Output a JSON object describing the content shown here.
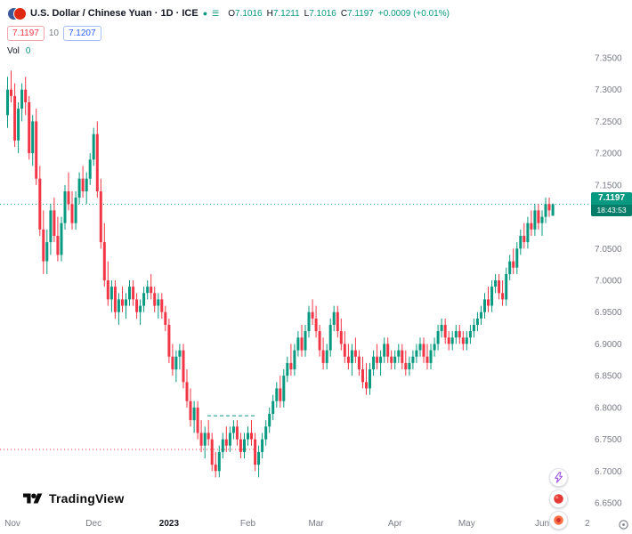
{
  "header": {
    "symbol_title": "U.S. Dollar / Chinese Yuan · 1D · ICE",
    "ohlc": {
      "open_label": "O",
      "open": "7.1016",
      "high_label": "H",
      "high": "7.1211",
      "low_label": "L",
      "low": "7.1016",
      "close_label": "C",
      "close": "7.1197",
      "change": "+0.0009 (+0.01%)"
    },
    "bid": "7.1197",
    "spread": "10",
    "ask": "7.1207",
    "volume_label": "Vol",
    "volume_value": "0"
  },
  "colors": {
    "up": "#089981",
    "down": "#F23645",
    "bid_badge": "#F23645",
    "ask_badge": "#2962FF",
    "axis_text": "#787B86",
    "title_text": "#131722"
  },
  "watermark": {
    "brand": "TradingView"
  },
  "chart_data": {
    "type": "candlestick",
    "title": "U.S. Dollar / Chinese Yuan",
    "symbol": "USDCNY",
    "timeframe": "1D",
    "exchange": "ICE",
    "last": {
      "price": 7.1197,
      "price_text": "7.1197",
      "countdown": "18:43:53"
    },
    "ylim": [
      6.62,
      7.385
    ],
    "y_ticks": [
      7.35,
      7.3,
      7.25,
      7.2,
      7.15,
      7.1,
      7.05,
      7.0,
      6.95,
      6.9,
      6.85,
      6.8,
      6.75,
      6.7,
      6.65
    ],
    "x_axis_labels": [
      {
        "label": "Nov",
        "i": 0
      },
      {
        "label": "Dec",
        "i": 24
      },
      {
        "label": "2023",
        "i": 45
      },
      {
        "label": "Feb",
        "i": 67
      },
      {
        "label": "Mar",
        "i": 86
      },
      {
        "label": "Apr",
        "i": 108
      },
      {
        "label": "May",
        "i": 128
      },
      {
        "label": "Jun",
        "i": 149
      }
    ],
    "edge_label": "2",
    "up_color": "#089981",
    "down_color": "#F23645",
    "lines": [
      {
        "price": 7.1197,
        "color": "#089981",
        "x1": 0,
        "x2": 663,
        "dash": "1,3"
      },
      {
        "price": 6.734,
        "color": "#F23645",
        "x1": 0,
        "x2": 287,
        "dash": "1,3"
      },
      {
        "price": 6.787,
        "color": "#089981",
        "x1": 233,
        "x2": 287,
        "dash": "4,3"
      }
    ],
    "candles": [
      [
        7.26,
        7.32,
        7.24,
        7.3
      ],
      [
        7.3,
        7.33,
        7.28,
        7.29
      ],
      [
        7.29,
        7.31,
        7.21,
        7.22
      ],
      [
        7.22,
        7.28,
        7.2,
        7.27
      ],
      [
        7.27,
        7.31,
        7.25,
        7.3
      ],
      [
        7.3,
        7.32,
        7.26,
        7.28
      ],
      [
        7.28,
        7.29,
        7.19,
        7.2
      ],
      [
        7.2,
        7.26,
        7.18,
        7.25
      ],
      [
        7.25,
        7.27,
        7.15,
        7.16
      ],
      [
        7.16,
        7.18,
        7.07,
        7.08
      ],
      [
        7.08,
        7.11,
        7.01,
        7.03
      ],
      [
        7.03,
        7.08,
        7.01,
        7.06
      ],
      [
        7.06,
        7.12,
        7.04,
        7.11
      ],
      [
        7.11,
        7.13,
        7.06,
        7.07
      ],
      [
        7.07,
        7.1,
        7.03,
        7.04
      ],
      [
        7.04,
        7.1,
        7.03,
        7.09
      ],
      [
        7.09,
        7.15,
        7.08,
        7.14
      ],
      [
        7.14,
        7.17,
        7.11,
        7.12
      ],
      [
        7.12,
        7.14,
        7.08,
        7.09
      ],
      [
        7.09,
        7.14,
        7.08,
        7.13
      ],
      [
        7.13,
        7.17,
        7.12,
        7.16
      ],
      [
        7.16,
        7.18,
        7.13,
        7.14
      ],
      [
        7.14,
        7.17,
        7.12,
        7.16
      ],
      [
        7.16,
        7.2,
        7.15,
        7.19
      ],
      [
        7.19,
        7.24,
        7.18,
        7.23
      ],
      [
        7.23,
        7.25,
        7.13,
        7.14
      ],
      [
        7.14,
        7.16,
        7.05,
        7.06
      ],
      [
        7.06,
        7.09,
        6.99,
        7.0
      ],
      [
        7.0,
        7.03,
        6.96,
        6.97
      ],
      [
        6.97,
        7.0,
        6.95,
        6.99
      ],
      [
        6.99,
        7.0,
        6.94,
        6.95
      ],
      [
        6.95,
        6.98,
        6.93,
        6.97
      ],
      [
        6.97,
        6.99,
        6.95,
        6.96
      ],
      [
        6.96,
        6.98,
        6.94,
        6.97
      ],
      [
        6.97,
        7.0,
        6.96,
        6.99
      ],
      [
        6.99,
        7.0,
        6.96,
        6.97
      ],
      [
        6.97,
        6.98,
        6.94,
        6.95
      ],
      [
        6.95,
        6.97,
        6.93,
        6.96
      ],
      [
        6.96,
        6.99,
        6.95,
        6.98
      ],
      [
        6.98,
        7.0,
        6.97,
        6.99
      ],
      [
        6.99,
        7.01,
        6.97,
        6.98
      ],
      [
        6.98,
        6.99,
        6.95,
        6.96
      ],
      [
        6.96,
        6.98,
        6.94,
        6.97
      ],
      [
        6.97,
        6.98,
        6.94,
        6.95
      ],
      [
        6.95,
        6.96,
        6.92,
        6.93
      ],
      [
        6.93,
        6.94,
        6.87,
        6.88
      ],
      [
        6.88,
        6.9,
        6.85,
        6.86
      ],
      [
        6.86,
        6.89,
        6.84,
        6.88
      ],
      [
        6.88,
        6.9,
        6.86,
        6.89
      ],
      [
        6.89,
        6.9,
        6.83,
        6.84
      ],
      [
        6.84,
        6.86,
        6.8,
        6.81
      ],
      [
        6.81,
        6.83,
        6.77,
        6.78
      ],
      [
        6.78,
        6.81,
        6.76,
        6.8
      ],
      [
        6.8,
        6.81,
        6.75,
        6.76
      ],
      [
        6.76,
        6.78,
        6.73,
        6.74
      ],
      [
        6.74,
        6.77,
        6.72,
        6.76
      ],
      [
        6.76,
        6.78,
        6.74,
        6.75
      ],
      [
        6.75,
        6.76,
        6.7,
        6.71
      ],
      [
        6.71,
        6.73,
        6.69,
        6.7
      ],
      [
        6.7,
        6.74,
        6.69,
        6.73
      ],
      [
        6.73,
        6.76,
        6.72,
        6.75
      ],
      [
        6.75,
        6.77,
        6.73,
        6.74
      ],
      [
        6.74,
        6.77,
        6.73,
        6.76
      ],
      [
        6.76,
        6.78,
        6.75,
        6.77
      ],
      [
        6.77,
        6.78,
        6.74,
        6.75
      ],
      [
        6.75,
        6.76,
        6.72,
        6.73
      ],
      [
        6.73,
        6.76,
        6.72,
        6.75
      ],
      [
        6.75,
        6.77,
        6.74,
        6.76
      ],
      [
        6.76,
        6.78,
        6.74,
        6.75
      ],
      [
        6.75,
        6.76,
        6.7,
        6.71
      ],
      [
        6.71,
        6.74,
        6.69,
        6.73
      ],
      [
        6.73,
        6.76,
        6.72,
        6.75
      ],
      [
        6.75,
        6.78,
        6.74,
        6.77
      ],
      [
        6.77,
        6.8,
        6.76,
        6.79
      ],
      [
        6.79,
        6.82,
        6.78,
        6.81
      ],
      [
        6.81,
        6.84,
        6.8,
        6.83
      ],
      [
        6.83,
        6.85,
        6.8,
        6.81
      ],
      [
        6.81,
        6.86,
        6.8,
        6.85
      ],
      [
        6.85,
        6.88,
        6.84,
        6.87
      ],
      [
        6.87,
        6.9,
        6.85,
        6.86
      ],
      [
        6.86,
        6.9,
        6.85,
        6.89
      ],
      [
        6.89,
        6.92,
        6.88,
        6.91
      ],
      [
        6.91,
        6.93,
        6.88,
        6.89
      ],
      [
        6.89,
        6.93,
        6.88,
        6.92
      ],
      [
        6.92,
        6.96,
        6.91,
        6.95
      ],
      [
        6.95,
        6.97,
        6.93,
        6.94
      ],
      [
        6.94,
        6.96,
        6.91,
        6.92
      ],
      [
        6.92,
        6.93,
        6.88,
        6.89
      ],
      [
        6.89,
        6.91,
        6.86,
        6.87
      ],
      [
        6.87,
        6.9,
        6.86,
        6.89
      ],
      [
        6.89,
        6.94,
        6.88,
        6.93
      ],
      [
        6.93,
        6.96,
        6.92,
        6.95
      ],
      [
        6.95,
        6.96,
        6.91,
        6.92
      ],
      [
        6.92,
        6.94,
        6.89,
        6.9
      ],
      [
        6.9,
        6.92,
        6.87,
        6.88
      ],
      [
        6.88,
        6.9,
        6.86,
        6.87
      ],
      [
        6.87,
        6.9,
        6.85,
        6.89
      ],
      [
        6.89,
        6.91,
        6.87,
        6.88
      ],
      [
        6.88,
        6.89,
        6.85,
        6.86
      ],
      [
        6.86,
        6.88,
        6.83,
        6.84
      ],
      [
        6.84,
        6.87,
        6.82,
        6.83
      ],
      [
        6.83,
        6.87,
        6.82,
        6.86
      ],
      [
        6.86,
        6.89,
        6.85,
        6.88
      ],
      [
        6.88,
        6.9,
        6.86,
        6.87
      ],
      [
        6.87,
        6.89,
        6.85,
        6.88
      ],
      [
        6.88,
        6.91,
        6.87,
        6.9
      ],
      [
        6.9,
        6.91,
        6.87,
        6.88
      ],
      [
        6.88,
        6.89,
        6.86,
        6.87
      ],
      [
        6.87,
        6.89,
        6.86,
        6.88
      ],
      [
        6.88,
        6.9,
        6.87,
        6.89
      ],
      [
        6.89,
        6.9,
        6.86,
        6.87
      ],
      [
        6.87,
        6.89,
        6.85,
        6.86
      ],
      [
        6.86,
        6.88,
        6.85,
        6.87
      ],
      [
        6.87,
        6.89,
        6.86,
        6.88
      ],
      [
        6.88,
        6.9,
        6.87,
        6.89
      ],
      [
        6.89,
        6.91,
        6.88,
        6.9
      ],
      [
        6.9,
        6.91,
        6.87,
        6.88
      ],
      [
        6.88,
        6.9,
        6.86,
        6.87
      ],
      [
        6.87,
        6.9,
        6.86,
        6.89
      ],
      [
        6.89,
        6.91,
        6.88,
        6.9
      ],
      [
        6.9,
        6.93,
        6.89,
        6.92
      ],
      [
        6.92,
        6.94,
        6.91,
        6.93
      ],
      [
        6.93,
        6.94,
        6.9,
        6.91
      ],
      [
        6.91,
        6.92,
        6.89,
        6.9
      ],
      [
        6.9,
        6.92,
        6.89,
        6.91
      ],
      [
        6.91,
        6.93,
        6.9,
        6.92
      ],
      [
        6.92,
        6.93,
        6.9,
        6.91
      ],
      [
        6.91,
        6.92,
        6.89,
        6.9
      ],
      [
        6.9,
        6.92,
        6.89,
        6.91
      ],
      [
        6.91,
        6.93,
        6.9,
        6.92
      ],
      [
        6.92,
        6.94,
        6.91,
        6.93
      ],
      [
        6.93,
        6.95,
        6.92,
        6.94
      ],
      [
        6.94,
        6.96,
        6.93,
        6.95
      ],
      [
        6.95,
        6.98,
        6.94,
        6.97
      ],
      [
        6.97,
        6.99,
        6.95,
        6.96
      ],
      [
        6.96,
        7.0,
        6.95,
        6.99
      ],
      [
        6.99,
        7.01,
        6.98,
        7.0
      ],
      [
        7.0,
        7.01,
        6.97,
        6.98
      ],
      [
        6.98,
        7.0,
        6.96,
        6.97
      ],
      [
        6.97,
        7.02,
        6.96,
        7.01
      ],
      [
        7.01,
        7.04,
        7.0,
        7.03
      ],
      [
        7.03,
        7.05,
        7.01,
        7.02
      ],
      [
        7.02,
        7.06,
        7.01,
        7.05
      ],
      [
        7.05,
        7.08,
        7.04,
        7.07
      ],
      [
        7.07,
        7.09,
        7.05,
        7.06
      ],
      [
        7.06,
        7.1,
        7.05,
        7.09
      ],
      [
        7.09,
        7.11,
        7.07,
        7.08
      ],
      [
        7.08,
        7.12,
        7.07,
        7.11
      ],
      [
        7.11,
        7.12,
        7.08,
        7.09
      ],
      [
        7.09,
        7.11,
        7.07,
        7.1
      ],
      [
        7.1,
        7.13,
        7.09,
        7.12
      ],
      [
        7.12,
        7.13,
        7.1,
        7.11
      ],
      [
        7.1016,
        7.1211,
        7.1016,
        7.1197
      ]
    ]
  }
}
